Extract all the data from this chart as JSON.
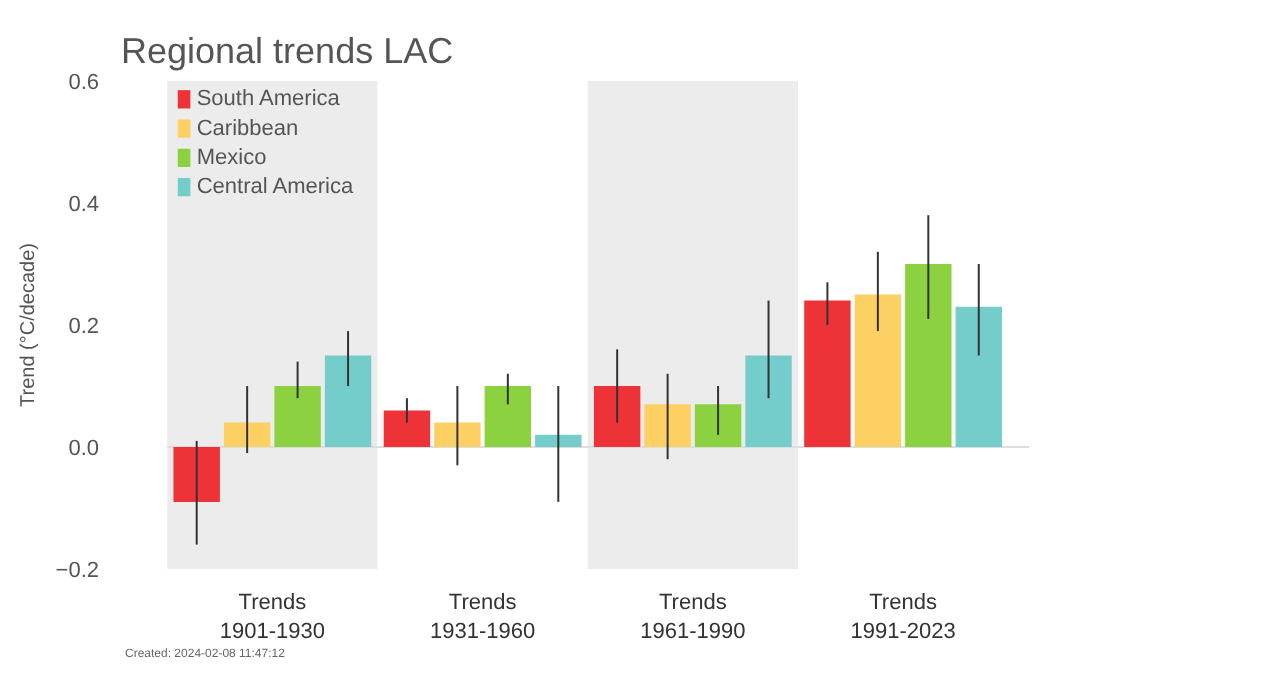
{
  "chart_data": {
    "type": "bar",
    "title": "Regional trends LAC",
    "ylabel": "Trend (°C/decade)",
    "categories": [
      "Trends\n1901-1930",
      "Trends\n1931-1960",
      "Trends\n1961-1990",
      "Trends\n1991-2023"
    ],
    "series": [
      {
        "name": "South America",
        "color": "#ee3338",
        "values": [
          -0.09,
          0.06,
          0.1,
          0.24
        ],
        "errors": [
          [
            -0.16,
            0.01
          ],
          [
            0.04,
            0.08
          ],
          [
            0.04,
            0.16
          ],
          [
            0.2,
            0.27
          ]
        ]
      },
      {
        "name": "Caribbean",
        "color": "#fdd064",
        "values": [
          0.04,
          0.04,
          0.07,
          0.25
        ],
        "errors": [
          [
            -0.01,
            0.1
          ],
          [
            -0.03,
            0.1
          ],
          [
            -0.02,
            0.12
          ],
          [
            0.19,
            0.32
          ]
        ]
      },
      {
        "name": "Mexico",
        "color": "#8cd13f",
        "values": [
          0.1,
          0.1,
          0.07,
          0.3
        ],
        "errors": [
          [
            0.08,
            0.14
          ],
          [
            0.07,
            0.12
          ],
          [
            0.02,
            0.1
          ],
          [
            0.21,
            0.38
          ]
        ]
      },
      {
        "name": "Central America",
        "color": "#74cdcb",
        "values": [
          0.15,
          0.02,
          0.15,
          0.23
        ],
        "errors": [
          [
            0.1,
            0.19
          ],
          [
            -0.09,
            0.1
          ],
          [
            0.08,
            0.24
          ],
          [
            0.15,
            0.3
          ]
        ]
      }
    ],
    "ylim": [
      -0.2,
      0.6
    ],
    "yticks": [
      {
        "value": -0.2,
        "label": "−0.2"
      },
      {
        "value": 0,
        "label": "0.0"
      },
      {
        "value": 0.2,
        "label": "0.2"
      },
      {
        "value": 0.4,
        "label": "0.4"
      },
      {
        "value": 0.6,
        "label": "0.6"
      }
    ],
    "bands": [
      {
        "axis": "x",
        "from": "Trends\n1901-1930",
        "to": "Trends\n1901-1930",
        "color": "#ececec"
      },
      {
        "axis": "x",
        "from": "Trends\n1961-1990",
        "to": "Trends\n1961-1990",
        "color": "#ececec"
      }
    ],
    "legend": "top left",
    "ref_lines": [
      {
        "axis": "y",
        "value": 0,
        "color": "#dddddd"
      }
    ],
    "annotations": [
      "Created: 2024-02-08 11:47:12"
    ]
  }
}
